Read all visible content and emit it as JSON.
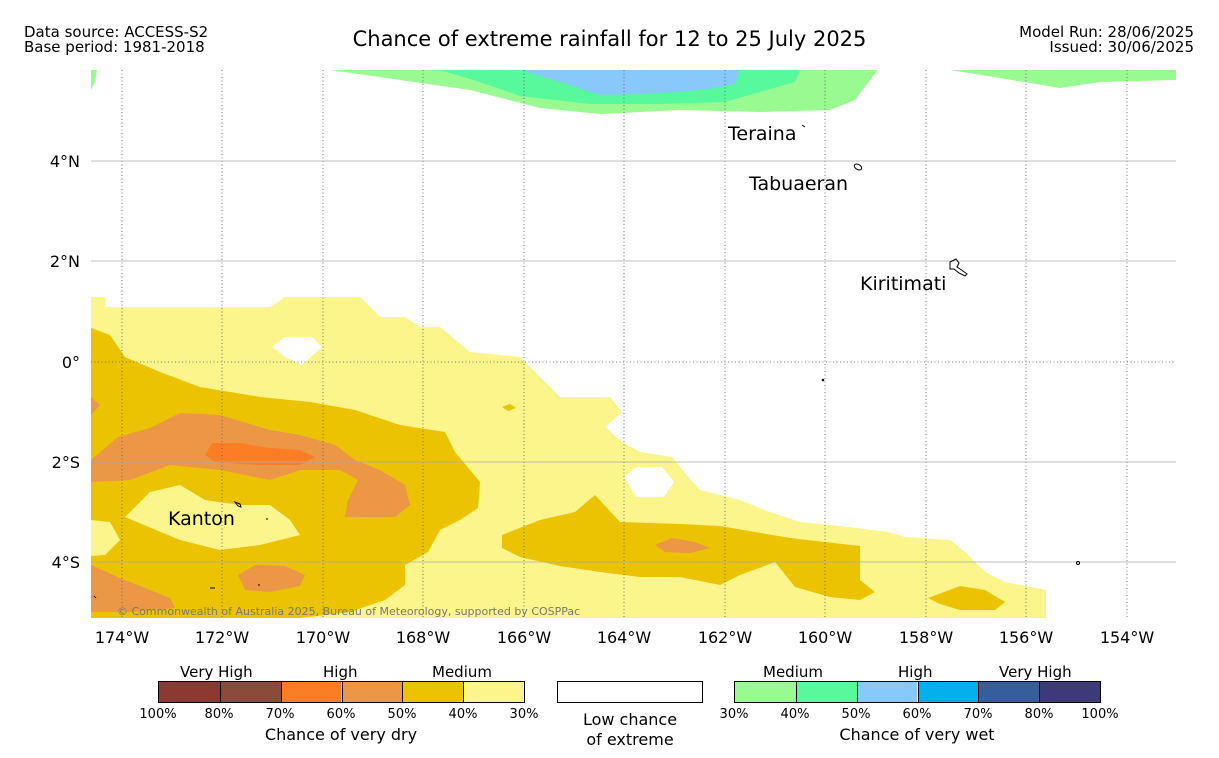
{
  "header": {
    "data_source": "Data source: ACCESS-S2",
    "base_period": "Base period: 1981-2018",
    "title": "Chance of extreme rainfall for 12 to 25 July 2025",
    "model_run": "Model Run: 28/06/2025",
    "issued": "Issued: 30/06/2025"
  },
  "map": {
    "lon_ticks": [
      "174°W",
      "172°W",
      "170°W",
      "168°W",
      "166°W",
      "164°W",
      "162°W",
      "160°W",
      "158°W",
      "156°W",
      "154°W"
    ],
    "lat_ticks": [
      "4°N",
      "2°N",
      "0°",
      "2°S",
      "4°S"
    ],
    "places": {
      "teraina": "Teraina",
      "tabuaeran": "Tabuaeran",
      "kiritimati": "Kiritimati",
      "kanton": "Kanton"
    },
    "credit": "© Commonwealth of Australia 2025, Bureau of Meteorology, supported by COSPPac"
  },
  "legend": {
    "dry": {
      "categories": [
        "Very High",
        "High",
        "Medium"
      ],
      "colors": [
        "#8b3a32",
        "#8b4b3a",
        "#fd7d24",
        "#ec9745",
        "#ebc300",
        "#fcf58c"
      ],
      "ticks": [
        "100%",
        "80%",
        "70%",
        "60%",
        "50%",
        "40%",
        "30%"
      ],
      "caption": "Chance of very dry"
    },
    "low": {
      "line1": "Low chance",
      "line2": "of extreme"
    },
    "wet": {
      "categories": [
        "Medium",
        "High",
        "Very High"
      ],
      "colors": [
        "#9afa92",
        "#58f89d",
        "#88c8fa",
        "#00b0ec",
        "#355e9a",
        "#3e3a77"
      ],
      "ticks": [
        "30%",
        "40%",
        "50%",
        "60%",
        "70%",
        "80%",
        "100%"
      ],
      "caption": "Chance of very wet"
    }
  }
}
